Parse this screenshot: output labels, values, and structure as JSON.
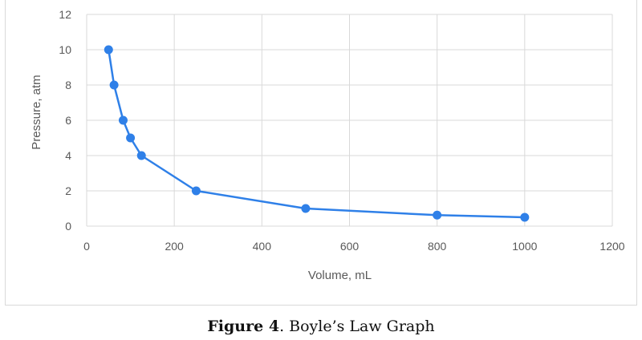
{
  "chart_data": {
    "type": "scatter",
    "line": true,
    "xlabel": "Volume, mL",
    "ylabel": "Pressure, atm",
    "xlim": [
      0,
      1200
    ],
    "ylim": [
      0,
      12
    ],
    "xticks": [
      0,
      200,
      400,
      600,
      800,
      1000,
      1200
    ],
    "yticks": [
      0,
      2,
      4,
      6,
      8,
      10,
      12
    ],
    "grid": true,
    "series": [
      {
        "color": "#2f80e8",
        "x": [
          50,
          62.5,
          83.3,
          100,
          125,
          250,
          500,
          800,
          1000
        ],
        "y": [
          10,
          8,
          6,
          5,
          4,
          2,
          1,
          0.625,
          0.5
        ]
      }
    ]
  },
  "caption": {
    "label": "Figure 4",
    "text": ". Boyle’s Law Graph"
  }
}
